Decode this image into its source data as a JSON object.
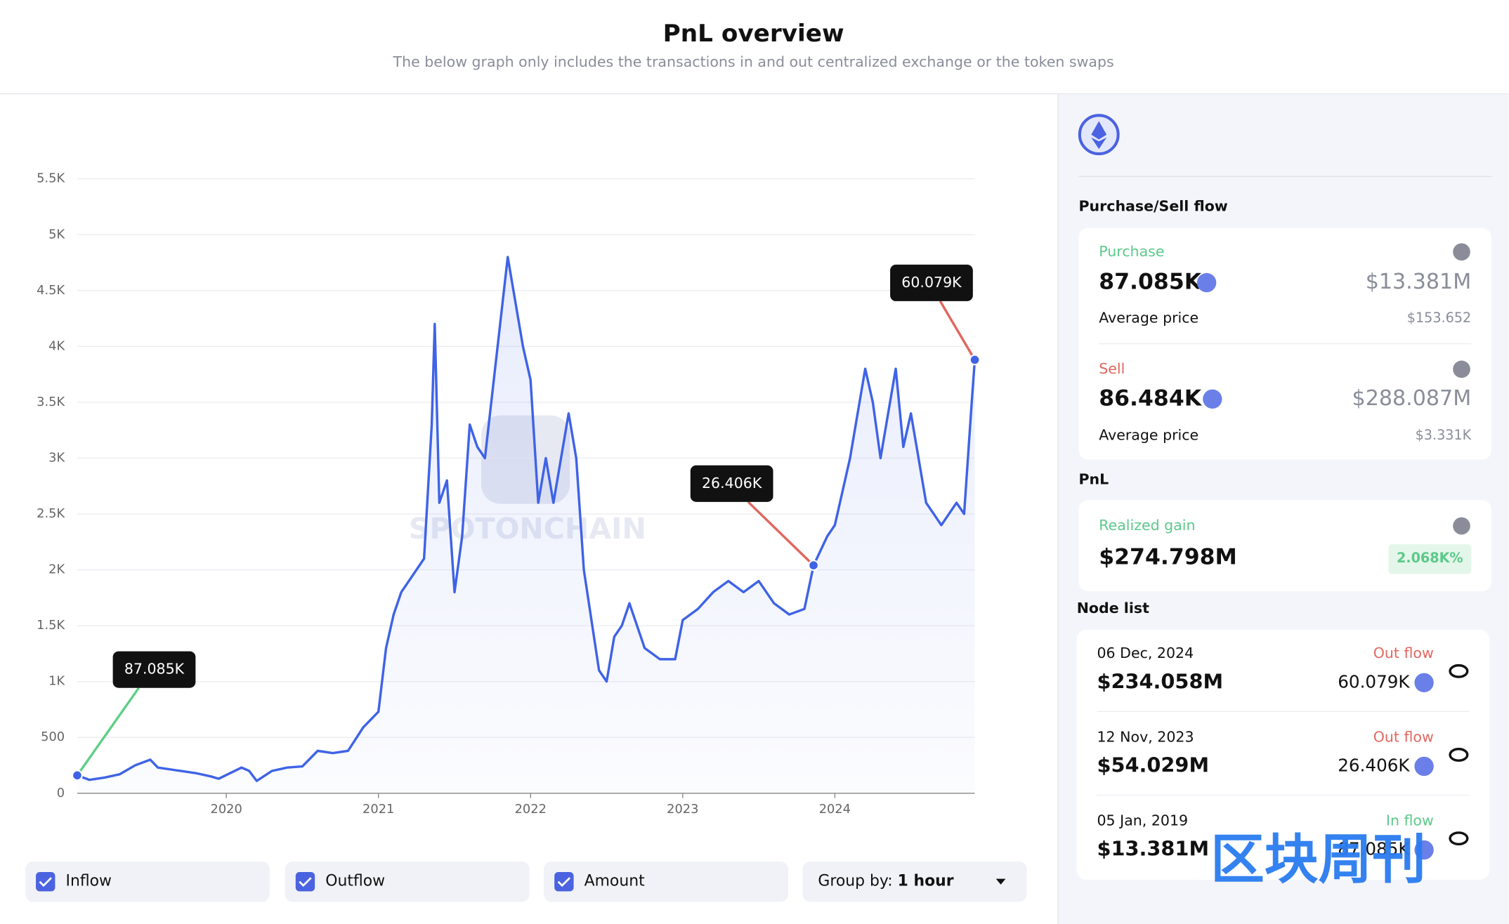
{
  "header": {
    "title": "PnL overview",
    "subtitle": "The below graph only includes the transactions in and out centralized exchange or the token swaps"
  },
  "chart_data": {
    "type": "line",
    "color": "#3f63e6",
    "grid": true,
    "watermark": "SPOTONCHAIN",
    "x": [
      2019.02,
      2019.1,
      2019.2,
      2019.3,
      2019.4,
      2019.5,
      2019.55,
      2019.7,
      2019.8,
      2019.9,
      2019.95,
      2020.1,
      2020.15,
      2020.2,
      2020.3,
      2020.4,
      2020.5,
      2020.6,
      2020.7,
      2020.8,
      2020.9,
      2021.0,
      2021.05,
      2021.1,
      2021.15,
      2021.2,
      2021.3,
      2021.35,
      2021.37,
      2021.4,
      2021.45,
      2021.5,
      2021.55,
      2021.6,
      2021.65,
      2021.7,
      2021.75,
      2021.8,
      2021.85,
      2021.9,
      2021.95,
      2022.0,
      2022.05,
      2022.1,
      2022.15,
      2022.25,
      2022.3,
      2022.35,
      2022.45,
      2022.5,
      2022.55,
      2022.6,
      2022.65,
      2022.75,
      2022.85,
      2022.95,
      2023.0,
      2023.1,
      2023.2,
      2023.3,
      2023.4,
      2023.5,
      2023.6,
      2023.7,
      2023.8,
      2023.86,
      2023.95,
      2024.0,
      2024.1,
      2024.2,
      2024.25,
      2024.3,
      2024.4,
      2024.45,
      2024.5,
      2024.6,
      2024.65,
      2024.7,
      2024.8,
      2024.85,
      2024.9,
      2024.92
    ],
    "values": [
      160,
      120,
      140,
      170,
      250,
      300,
      230,
      200,
      180,
      150,
      130,
      230,
      200,
      110,
      200,
      230,
      240,
      380,
      360,
      380,
      590,
      730,
      1300,
      1600,
      1800,
      1900,
      2100,
      3300,
      4200,
      2600,
      2800,
      1800,
      2300,
      3300,
      3100,
      3000,
      3600,
      4200,
      4800,
      4400,
      4000,
      3700,
      2600,
      3000,
      2600,
      3400,
      3000,
      2000,
      1100,
      1000,
      1400,
      1500,
      1700,
      1300,
      1200,
      1200,
      1550,
      1650,
      1800,
      1900,
      1800,
      1900,
      1700,
      1600,
      1650,
      2040,
      2300,
      2400,
      3000,
      3800,
      3500,
      3000,
      3800,
      3100,
      3400,
      2600,
      2500,
      2400,
      2600,
      2500,
      3500,
      3880
    ],
    "xlim": [
      2019.02,
      2024.92
    ],
    "xticks": [
      2020,
      2021,
      2022,
      2023,
      2024
    ],
    "ylim": [
      0,
      5500
    ],
    "yticks": [
      0,
      500,
      {
        "value": 1000,
        "label": "1K"
      },
      {
        "value": 1500,
        "label": "1.5K"
      },
      {
        "value": 2000,
        "label": "2K"
      },
      {
        "value": 2500,
        "label": "2.5K"
      },
      {
        "value": 3000,
        "label": "3K"
      },
      {
        "value": 3500,
        "label": "3.5K"
      },
      {
        "value": 4000,
        "label": "4K"
      },
      {
        "value": 4500,
        "label": "4.5K"
      },
      {
        "value": 5000,
        "label": "5K"
      },
      {
        "value": 5500,
        "label": "5.5K"
      }
    ],
    "annotations": [
      {
        "x": 2019.02,
        "y": 160,
        "label": "87.085K",
        "color": "#5fcf86"
      },
      {
        "x": 2023.86,
        "y": 2040,
        "label": "26.406K",
        "color": "#e0675f"
      },
      {
        "x": 2024.92,
        "y": 3880,
        "label": "60.079K",
        "color": "#e0675f"
      }
    ]
  },
  "controls": {
    "inflow": "Inflow",
    "outflow": "Outflow",
    "amount": "Amount",
    "group_by_label": "Group by:",
    "group_by_value": "1 hour"
  },
  "sidebar": {
    "flow_title": "Purchase/Sell flow",
    "purchase": {
      "label": "Purchase",
      "amount": "87.085K",
      "usd": "$13.381M",
      "avg_label": "Average price",
      "avg": "$153.652"
    },
    "sell": {
      "label": "Sell",
      "amount": "86.484K",
      "usd": "$288.087M",
      "avg_label": "Average price",
      "avg": "$3.331K"
    },
    "pnl_title": "PnL",
    "pnl": {
      "label": "Realized gain",
      "value": "$274.798M",
      "percent": "2.068K%"
    },
    "node_title": "Node list",
    "nodes": [
      {
        "date": "06 Dec, 2024",
        "flow": "Out flow",
        "usd": "$234.058M",
        "amount": "60.079K"
      },
      {
        "date": "12 Nov, 2023",
        "flow": "Out flow",
        "usd": "$54.029M",
        "amount": "26.406K"
      },
      {
        "date": "05 Jan, 2019",
        "flow": "In flow",
        "usd": "$13.381M",
        "amount": "87.085K"
      }
    ]
  },
  "overlay": "区块周刊"
}
